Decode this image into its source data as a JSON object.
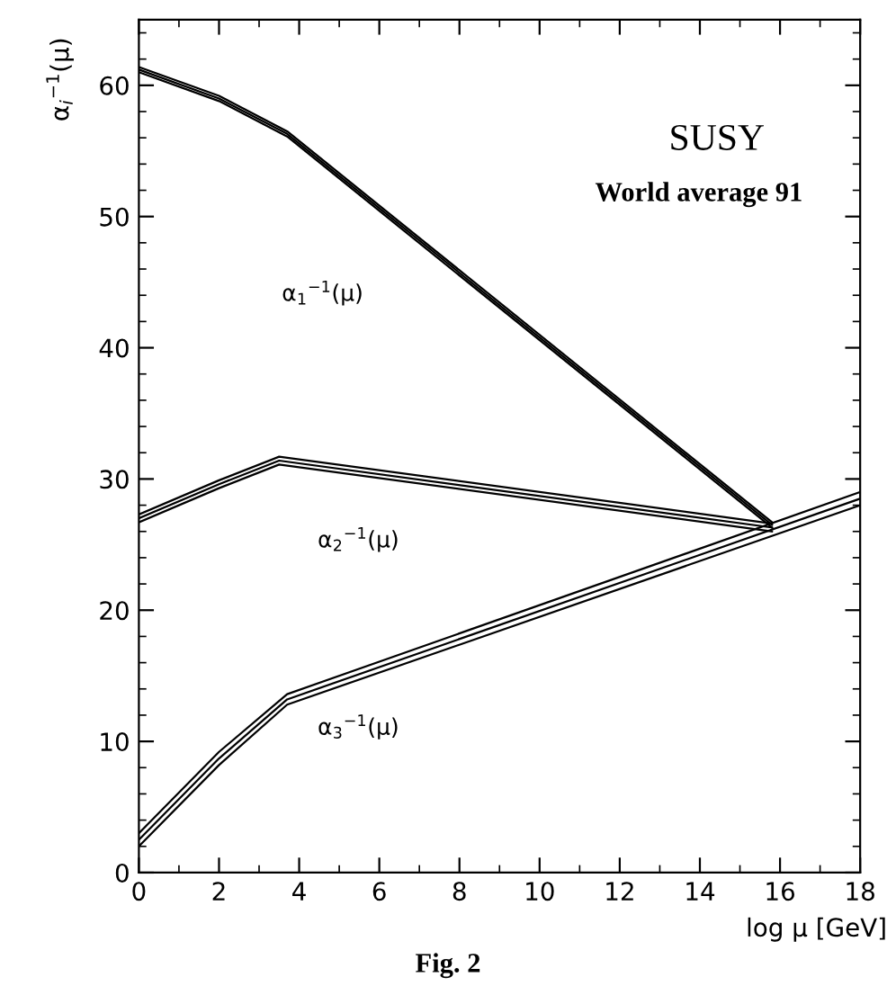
{
  "chart_data": {
    "type": "line",
    "xlabel": "log μ [GeV]",
    "ylabel": "α$_{i}$$^{−1}$(μ)",
    "xlim": [
      0,
      18
    ],
    "ylim": [
      0,
      65
    ],
    "xticks": [
      0,
      2,
      4,
      6,
      8,
      10,
      12,
      14,
      16,
      18
    ],
    "yticks": [
      0,
      10,
      20,
      30,
      40,
      50,
      60
    ],
    "grid": false,
    "legend": false,
    "marker": "none",
    "line_style": "solid",
    "series": [
      {
        "color": "#000000",
        "x": [
          0,
          2,
          3.7,
          15.8
        ],
        "values": [
          61.4,
          59.2,
          56.5,
          26.7
        ]
      },
      {
        "color": "#000000",
        "x": [
          0,
          2,
          3.7,
          15.8
        ],
        "values": [
          61.2,
          59.0,
          56.3,
          26.5
        ]
      },
      {
        "color": "#000000",
        "x": [
          0,
          2,
          3.7,
          15.8
        ],
        "values": [
          61.0,
          58.8,
          56.1,
          26.3
        ]
      },
      {
        "color": "#000000",
        "x": [
          0,
          2,
          3.5,
          15.8
        ],
        "values": [
          27.3,
          29.9,
          31.7,
          26.6
        ]
      },
      {
        "color": "#000000",
        "x": [
          0,
          2,
          3.5,
          15.8
        ],
        "values": [
          27.0,
          29.6,
          31.4,
          26.3
        ]
      },
      {
        "color": "#000000",
        "x": [
          0,
          2,
          3.5,
          15.8
        ],
        "values": [
          26.7,
          29.3,
          31.1,
          26.0
        ]
      },
      {
        "color": "#000000",
        "x": [
          0,
          2,
          3.7,
          18
        ],
        "values": [
          3.0,
          9.2,
          13.6,
          29.0
        ]
      },
      {
        "color": "#000000",
        "x": [
          0,
          2,
          3.7,
          18
        ],
        "values": [
          2.5,
          8.7,
          13.2,
          28.5
        ]
      },
      {
        "color": "#000000",
        "x": [
          0,
          2,
          3.7,
          18
        ],
        "values": [
          2.0,
          8.2,
          12.8,
          28.0
        ]
      }
    ],
    "annotations": [
      "α$_{1}$$^{−1}$(μ)",
      "α$_{2}$$^{−1}$(μ)",
      "α$_{3}$$^{−1}$(μ)",
      "SUSY",
      "World average 91",
      "Fig. 2"
    ]
  }
}
